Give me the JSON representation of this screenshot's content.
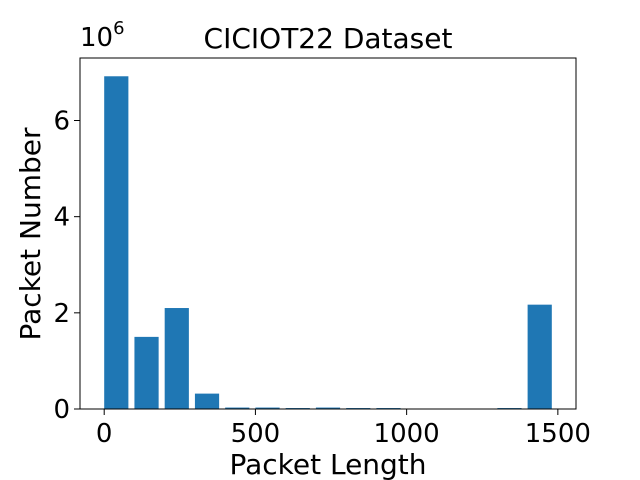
{
  "chart_data": {
    "type": "bar",
    "title": "CICIOT22 Dataset",
    "xlabel": "Packet Length",
    "ylabel": "Packet Number",
    "y_multiplier_label": "10",
    "y_multiplier_exponent": "6",
    "bar_color": "#1f77b4",
    "bin_width": 80,
    "x": [
      40,
      140,
      240,
      340,
      440,
      540,
      640,
      740,
      840,
      940,
      1040,
      1140,
      1240,
      1340,
      1440
    ],
    "values": [
      6.92,
      1.5,
      2.1,
      0.32,
      0.03,
      0.03,
      0.02,
      0.03,
      0.02,
      0.02,
      0,
      0,
      0,
      0.02,
      2.17
    ],
    "xlim": [
      -80,
      1560
    ],
    "ylim": [
      0,
      7.3
    ],
    "xticks": [
      0,
      500,
      1000,
      1500
    ],
    "xtick_labels": [
      "0",
      "500",
      "1000",
      "1500"
    ],
    "yticks": [
      0,
      2,
      4,
      6
    ],
    "ytick_labels": [
      "0",
      "2",
      "4",
      "6"
    ],
    "grid": false
  }
}
